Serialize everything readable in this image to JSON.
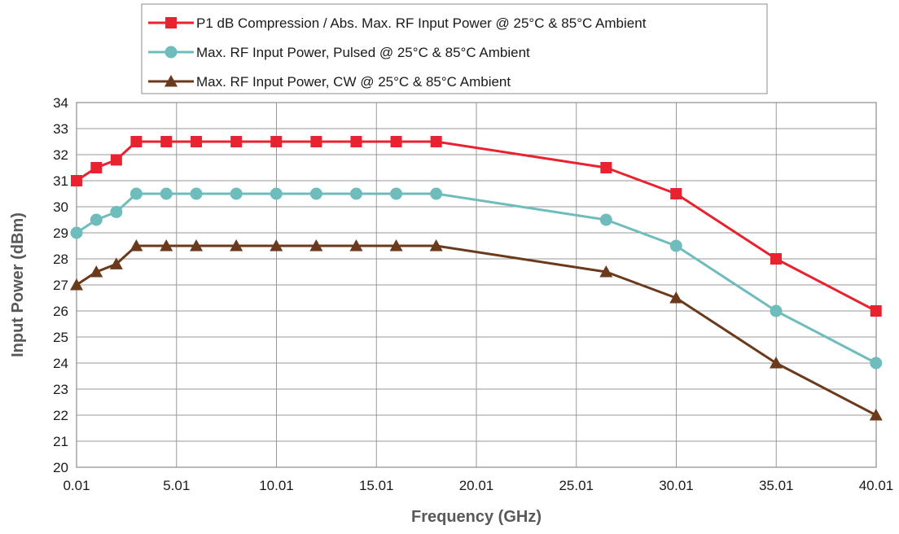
{
  "chart_data": {
    "type": "line",
    "title": "",
    "xlabel": "Frequency (GHz)",
    "ylabel": "Input Power (dBm)",
    "xlim": [
      0.01,
      40.01
    ],
    "ylim": [
      20,
      34
    ],
    "x_ticks": [
      "0.01",
      "5.01",
      "10.01",
      "15.01",
      "20.01",
      "25.01",
      "30.01",
      "35.01",
      "40.01"
    ],
    "y_ticks": [
      "20",
      "21",
      "22",
      "23",
      "24",
      "25",
      "26",
      "27",
      "28",
      "29",
      "30",
      "31",
      "32",
      "33",
      "34"
    ],
    "grid": true,
    "legend_position": "top-center",
    "x": [
      0.01,
      1,
      2,
      3,
      4.5,
      6,
      8,
      10,
      12,
      14,
      16,
      18,
      26.5,
      30,
      35,
      40
    ],
    "series": [
      {
        "name": "P1 dB Compression / Abs. Max. RF Input Power @ 25°C & 85°C Ambient",
        "color": "#e8222e",
        "marker": "square",
        "values": [
          31,
          31.5,
          31.8,
          32.5,
          32.5,
          32.5,
          32.5,
          32.5,
          32.5,
          32.5,
          32.5,
          32.5,
          31.5,
          30.5,
          28,
          26
        ]
      },
      {
        "name": "Max. RF Input Power, Pulsed @  25°C & 85°C Ambient",
        "color": "#6fbcbc",
        "marker": "circle",
        "values": [
          29,
          29.5,
          29.8,
          30.5,
          30.5,
          30.5,
          30.5,
          30.5,
          30.5,
          30.5,
          30.5,
          30.5,
          29.5,
          28.5,
          26,
          24
        ]
      },
      {
        "name": "Max. RF Input Power, CW @ 25°C & 85°C Ambient",
        "color": "#6b3a1c",
        "marker": "triangle",
        "values": [
          27,
          27.5,
          27.8,
          28.5,
          28.5,
          28.5,
          28.5,
          28.5,
          28.5,
          28.5,
          28.5,
          28.5,
          27.5,
          26.5,
          24,
          22
        ]
      }
    ]
  }
}
